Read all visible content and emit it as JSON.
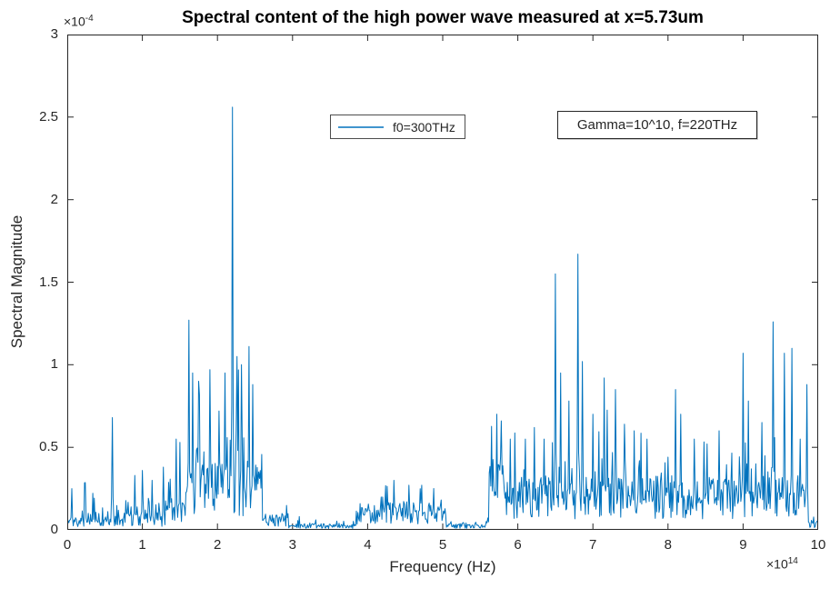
{
  "title": "Spectral content of the high power wave measured at x=5.73um",
  "axes": {
    "x": {
      "label": "Frequency (Hz)",
      "exp_prefix": "×10",
      "exp": "14",
      "ticks": [
        "0",
        "1",
        "2",
        "3",
        "4",
        "5",
        "6",
        "7",
        "8",
        "9",
        "10"
      ]
    },
    "y": {
      "label": "Spectral Magnitude",
      "exp_prefix": "×10",
      "exp": "-4",
      "ticks": [
        "0",
        "0.5",
        "1",
        "1.5",
        "2",
        "2.5",
        "3"
      ]
    }
  },
  "legend": {
    "label": "f0=300THz"
  },
  "annotation": {
    "text": "Gamma=10^10, f=220THz"
  },
  "colors": {
    "line": "#0072BD",
    "axis": "#262626",
    "title_text": "#000000",
    "background": "#ffffff"
  },
  "chart_data": {
    "type": "line",
    "title": "Spectral content of the high power wave measured at x=5.73um",
    "xlabel": "Frequency (Hz)",
    "ylabel": "Spectral Magnitude",
    "x_units": "1e14 Hz",
    "y_units": "1e-4",
    "xlim": [
      0,
      10
    ],
    "ylim": [
      0,
      3
    ],
    "grid": false,
    "legend_position": "top-center-inside",
    "series_name": "f0=300THz",
    "sample_dx": 0.01,
    "seed": 7,
    "main_peak": {
      "x": 2.2,
      "y": 2.56
    },
    "major_peaks": [
      [
        0.06,
        0.25
      ],
      [
        0.6,
        0.68
      ],
      [
        0.9,
        0.33
      ],
      [
        1.0,
        0.36
      ],
      [
        1.13,
        0.3
      ],
      [
        1.28,
        0.38
      ],
      [
        1.45,
        0.55
      ],
      [
        1.5,
        0.53
      ],
      [
        1.62,
        1.27
      ],
      [
        1.67,
        0.95
      ],
      [
        1.75,
        0.9
      ],
      [
        1.9,
        0.97
      ],
      [
        2.02,
        0.72
      ],
      [
        2.1,
        0.95
      ],
      [
        2.2,
        2.56
      ],
      [
        2.26,
        1.05
      ],
      [
        2.32,
        1.0
      ],
      [
        2.42,
        1.11
      ],
      [
        2.47,
        0.88
      ],
      [
        4.35,
        0.3
      ],
      [
        4.55,
        0.27
      ],
      [
        4.72,
        0.27
      ],
      [
        4.88,
        0.25
      ],
      [
        5.72,
        0.7
      ],
      [
        5.78,
        0.66
      ],
      [
        5.9,
        0.55
      ],
      [
        6.1,
        0.55
      ],
      [
        6.22,
        0.62
      ],
      [
        6.35,
        0.55
      ],
      [
        6.5,
        1.55
      ],
      [
        6.57,
        0.95
      ],
      [
        6.68,
        0.78
      ],
      [
        6.8,
        1.67
      ],
      [
        6.86,
        1.02
      ],
      [
        7.0,
        0.7
      ],
      [
        7.15,
        0.92
      ],
      [
        7.3,
        0.85
      ],
      [
        7.42,
        0.64
      ],
      [
        7.55,
        0.6
      ],
      [
        7.72,
        0.55
      ],
      [
        8.1,
        0.85
      ],
      [
        8.17,
        0.7
      ],
      [
        8.35,
        0.55
      ],
      [
        8.52,
        0.52
      ],
      [
        8.68,
        0.6
      ],
      [
        9.0,
        1.07
      ],
      [
        9.07,
        0.78
      ],
      [
        9.25,
        0.65
      ],
      [
        9.4,
        1.26
      ],
      [
        9.55,
        1.07
      ],
      [
        9.65,
        1.1
      ],
      [
        9.76,
        0.55
      ],
      [
        9.85,
        0.88
      ]
    ],
    "noise_regions": [
      [
        0.0,
        0.45,
        0.05,
        0.16
      ],
      [
        0.45,
        0.75,
        0.05,
        0.1
      ],
      [
        0.75,
        1.32,
        0.07,
        0.22
      ],
      [
        1.32,
        1.55,
        0.12,
        0.3
      ],
      [
        1.55,
        2.6,
        0.28,
        0.45
      ],
      [
        2.6,
        2.95,
        0.06,
        0.07
      ],
      [
        2.95,
        3.85,
        0.025,
        0.035
      ],
      [
        3.85,
        5.05,
        0.11,
        0.14
      ],
      [
        5.05,
        5.62,
        0.028,
        0.035
      ],
      [
        5.62,
        5.95,
        0.28,
        0.28
      ],
      [
        5.95,
        9.85,
        0.22,
        0.3
      ],
      [
        9.85,
        10.0,
        0.04,
        0.05
      ]
    ]
  }
}
